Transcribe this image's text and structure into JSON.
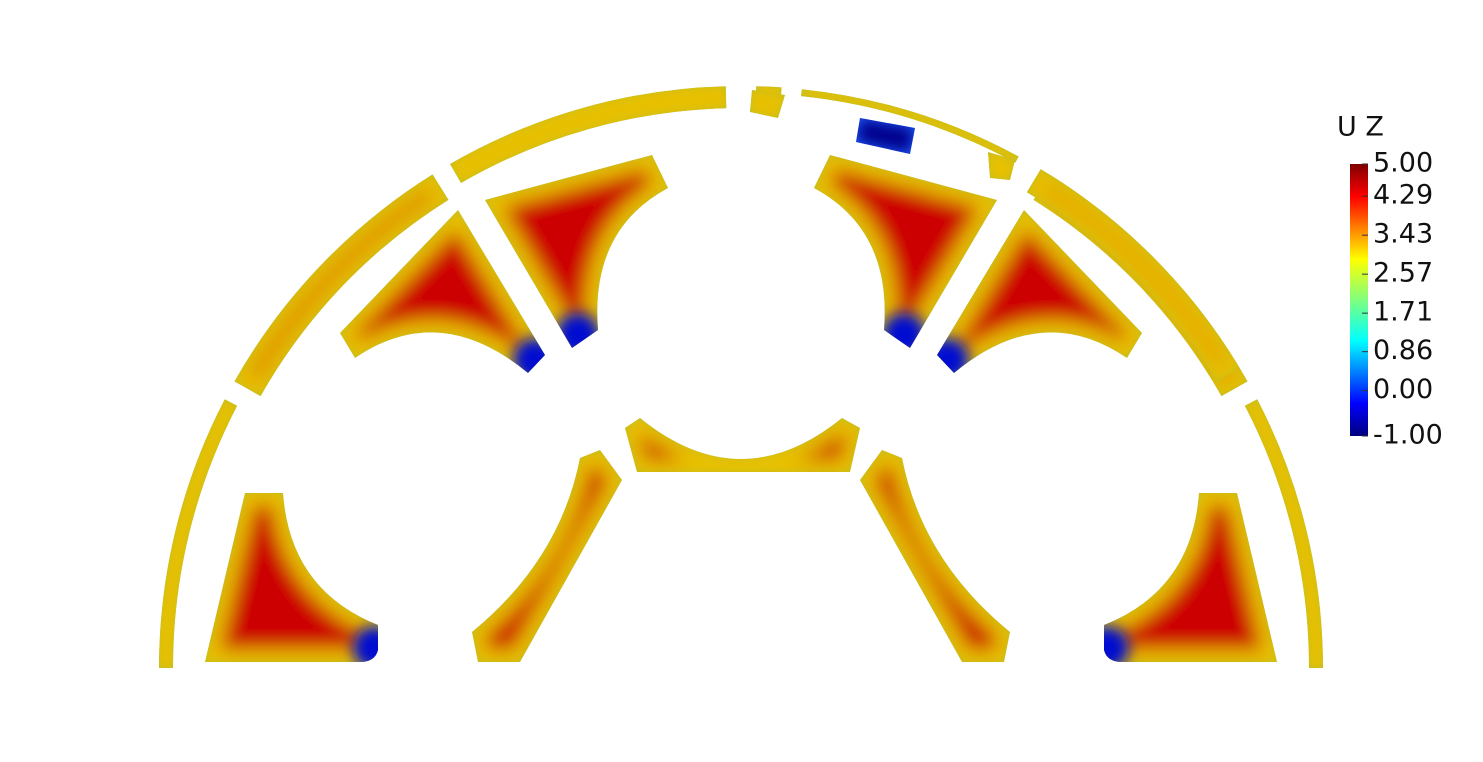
{
  "legend": {
    "title": "U Z",
    "range": [
      -1,
      5
    ],
    "ticks": [
      {
        "value": 5,
        "label": "5.00"
      },
      {
        "value": 4.29,
        "label": "4.29"
      },
      {
        "value": 3.43,
        "label": "3.43"
      },
      {
        "value": 2.57,
        "label": "2.57"
      },
      {
        "value": 1.71,
        "label": "1.71"
      },
      {
        "value": 0.86,
        "label": "0.86"
      },
      {
        "value": 0,
        "label": "0.00"
      },
      {
        "value": -1,
        "label": "-1.00"
      }
    ]
  }
}
